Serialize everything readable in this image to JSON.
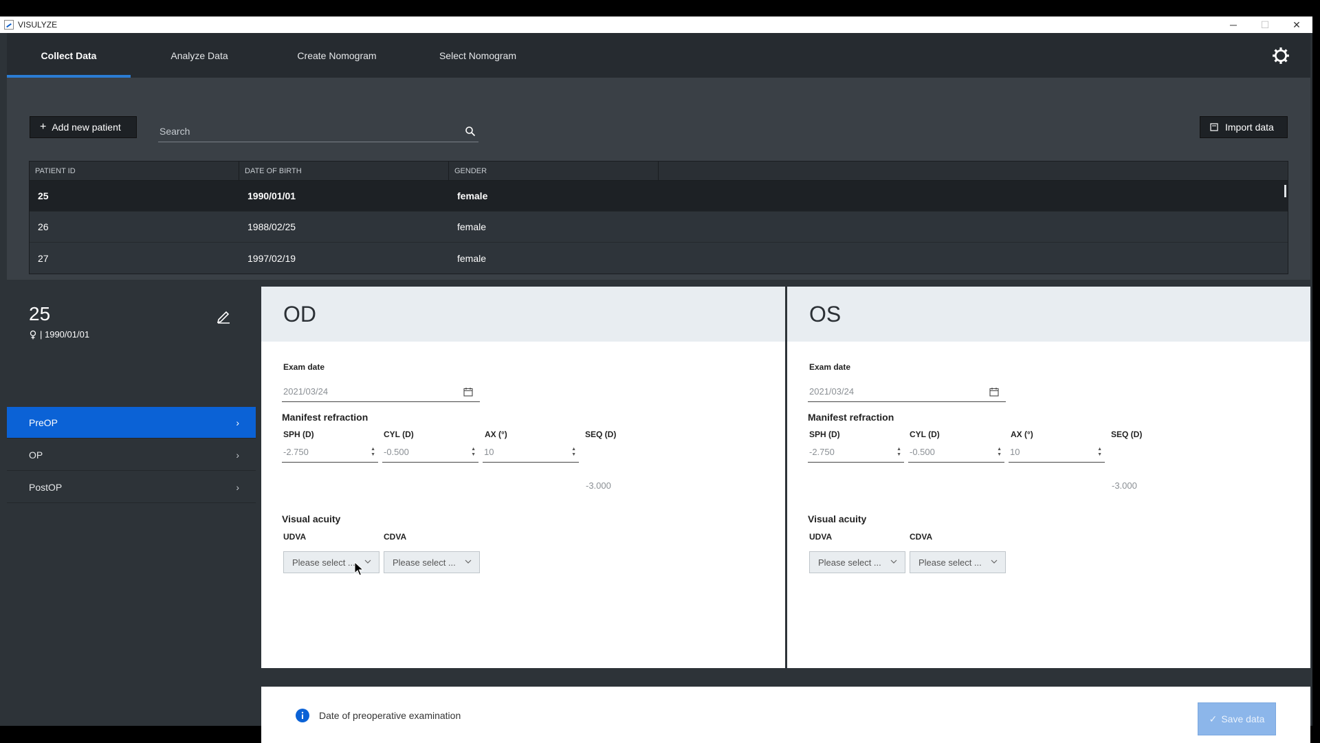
{
  "window": {
    "title": "VISULYZE"
  },
  "nav": {
    "tabs": [
      "Collect Data",
      "Analyze Data",
      "Create Nomogram",
      "Select Nomogram"
    ],
    "active": "Collect Data"
  },
  "toolbar": {
    "add_label": "Add new patient",
    "search_placeholder": "Search",
    "import_label": "Import data"
  },
  "table": {
    "headers": [
      "PATIENT ID",
      "DATE OF BIRTH",
      "GENDER"
    ],
    "rows": [
      [
        "25",
        "1990/01/01",
        "female"
      ],
      [
        "26",
        "1988/02/25",
        "female"
      ],
      [
        "27",
        "1997/02/19",
        "female"
      ]
    ]
  },
  "patient": {
    "id": "25",
    "dob": "| 1990/01/01"
  },
  "sidebar": {
    "items": [
      "PreOP",
      "OP",
      "PostOP"
    ],
    "active": "PreOP"
  },
  "eyes": {
    "od": {
      "title": "OD",
      "exam_date_label": "Exam date",
      "exam_date": "2021/03/24",
      "manifest_label": "Manifest refraction",
      "sph_label": "SPH (D)",
      "sph": "-2.750",
      "cyl_label": "CYL (D)",
      "cyl": "-0.500",
      "ax_label": "AX (°)",
      "ax": "10",
      "seq_label": "SEQ (D)",
      "seq": "-3.000",
      "va_label": "Visual acuity",
      "udva_label": "UDVA",
      "udva": "Please select ...",
      "cdva_label": "CDVA",
      "cdva": "Please select ..."
    },
    "os": {
      "title": "OS",
      "exam_date_label": "Exam date",
      "exam_date": "2021/03/24",
      "manifest_label": "Manifest refraction",
      "sph_label": "SPH (D)",
      "sph": "-2.750",
      "cyl_label": "CYL (D)",
      "cyl": "-0.500",
      "ax_label": "AX (°)",
      "ax": "10",
      "seq_label": "SEQ (D)",
      "seq": "-3.000",
      "va_label": "Visual acuity",
      "udva_label": "UDVA",
      "udva": "Please select ...",
      "cdva_label": "CDVA",
      "cdva": "Please select ..."
    }
  },
  "footer": {
    "info": "Date of preoperative examination",
    "save_label": "Save data"
  },
  "colors": {
    "accent": "#0b62d6",
    "tab_indicator": "#2b7cd3",
    "save_disabled": "#8cb6ea"
  }
}
